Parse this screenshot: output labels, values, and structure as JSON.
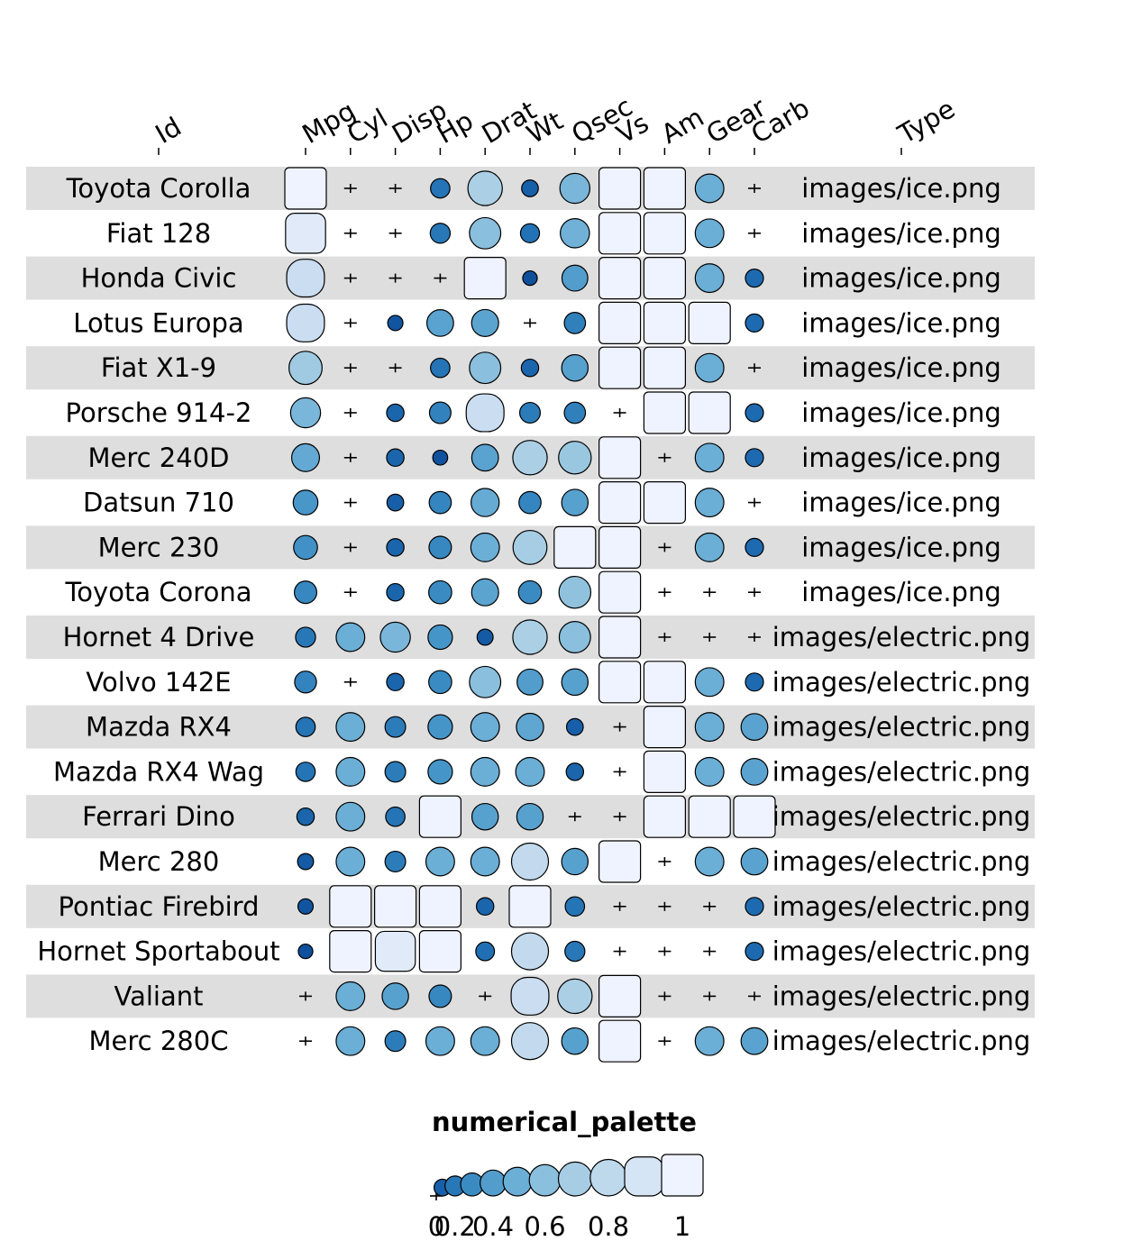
{
  "chart_data": {
    "type": "heatmap",
    "subtype": "funky heatmap (size + colour encoded glyphs)",
    "columns": [
      {
        "id": "id",
        "label": "Id",
        "kind": "text"
      },
      {
        "id": "mpg",
        "label": "Mpg",
        "kind": "funkyrect"
      },
      {
        "id": "cyl",
        "label": "Cyl",
        "kind": "funkyrect"
      },
      {
        "id": "disp",
        "label": "Disp",
        "kind": "funkyrect"
      },
      {
        "id": "hp",
        "label": "Hp",
        "kind": "funkyrect"
      },
      {
        "id": "drat",
        "label": "Drat",
        "kind": "funkyrect"
      },
      {
        "id": "wt",
        "label": "Wt",
        "kind": "funkyrect"
      },
      {
        "id": "qsec",
        "label": "Qsec",
        "kind": "funkyrect"
      },
      {
        "id": "vs",
        "label": "Vs",
        "kind": "funkyrect"
      },
      {
        "id": "am",
        "label": "Am",
        "kind": "funkyrect"
      },
      {
        "id": "gear",
        "label": "Gear",
        "kind": "funkyrect"
      },
      {
        "id": "carb",
        "label": "Carb",
        "kind": "funkyrect"
      },
      {
        "id": "type",
        "label": "Type",
        "kind": "text"
      }
    ],
    "numeric_columns": [
      "mpg",
      "cyl",
      "disp",
      "hp",
      "drat",
      "wt",
      "qsec",
      "vs",
      "am",
      "gear",
      "carb"
    ],
    "rows": [
      {
        "id": "Toyota Corolla",
        "type": "images/ice.png",
        "values": [
          1.0,
          0.0,
          0.02,
          0.18,
          0.72,
          0.1,
          0.55,
          1,
          1,
          0.5,
          0.0
        ]
      },
      {
        "id": "Fiat 128",
        "type": "images/ice.png",
        "values": [
          0.94,
          0.0,
          0.02,
          0.2,
          0.6,
          0.17,
          0.52,
          1,
          1,
          0.5,
          0.0
        ]
      },
      {
        "id": "Honda Civic",
        "type": "images/ice.png",
        "values": [
          0.85,
          0.0,
          0.01,
          0.0,
          1.0,
          0.04,
          0.4,
          1,
          1,
          0.5,
          0.14
        ]
      },
      {
        "id": "Lotus Europa",
        "type": "images/ice.png",
        "values": [
          0.85,
          0.0,
          0.06,
          0.43,
          0.44,
          0.0,
          0.24,
          1,
          1,
          1.0,
          0.14
        ]
      },
      {
        "id": "Fiat X1-9",
        "type": "images/ice.png",
        "values": [
          0.67,
          0.0,
          0.02,
          0.18,
          0.6,
          0.12,
          0.42,
          1,
          1,
          0.5,
          0.0
        ]
      },
      {
        "id": "Porsche 914-2",
        "type": "images/ice.png",
        "values": [
          0.55,
          0.0,
          0.12,
          0.25,
          0.85,
          0.22,
          0.24,
          0,
          1,
          1.0,
          0.14
        ]
      },
      {
        "id": "Merc 240D",
        "type": "images/ice.png",
        "values": [
          0.47,
          0.0,
          0.12,
          0.05,
          0.43,
          0.72,
          0.65,
          1,
          0,
          0.5,
          0.14
        ]
      },
      {
        "id": "Datsun 710",
        "type": "images/ice.png",
        "values": [
          0.36,
          0.0,
          0.1,
          0.27,
          0.48,
          0.27,
          0.42,
          1,
          1,
          0.5,
          0.0
        ]
      },
      {
        "id": "Merc 230",
        "type": "images/ice.png",
        "values": [
          0.33,
          0.0,
          0.12,
          0.28,
          0.5,
          0.7,
          1.0,
          1,
          0,
          0.5,
          0.14
        ]
      },
      {
        "id": "Toyota Corona",
        "type": "images/ice.png",
        "values": [
          0.28,
          0.0,
          0.12,
          0.3,
          0.44,
          0.3,
          0.62,
          1,
          0,
          0.0,
          0.0
        ]
      },
      {
        "id": "Hornet 4 Drive",
        "type": "images/electric.png",
        "values": [
          0.2,
          0.5,
          0.55,
          0.35,
          0.08,
          0.72,
          0.6,
          1,
          0,
          0.0,
          0.0
        ]
      },
      {
        "id": "Volvo 142E",
        "type": "images/electric.png",
        "values": [
          0.26,
          0.0,
          0.12,
          0.3,
          0.6,
          0.4,
          0.42,
          1,
          1,
          0.5,
          0.14
        ]
      },
      {
        "id": "Mazda RX4",
        "type": "images/electric.png",
        "values": [
          0.18,
          0.5,
          0.22,
          0.35,
          0.5,
          0.45,
          0.1,
          0,
          1,
          0.5,
          0.43
        ]
      },
      {
        "id": "Mazda RX4 Wag",
        "type": "images/electric.png",
        "values": [
          0.18,
          0.5,
          0.22,
          0.35,
          0.5,
          0.5,
          0.12,
          0,
          1,
          0.5,
          0.43
        ]
      },
      {
        "id": "Ferrari Dino",
        "type": "images/electric.png",
        "values": [
          0.12,
          0.5,
          0.18,
          1.0,
          0.42,
          0.42,
          0.02,
          0,
          1,
          1.0,
          1.0
        ]
      },
      {
        "id": "Merc 280",
        "type": "images/electric.png",
        "values": [
          0.08,
          0.5,
          0.22,
          0.5,
          0.5,
          0.82,
          0.42,
          1,
          0,
          0.5,
          0.43
        ]
      },
      {
        "id": "Pontiac Firebird",
        "type": "images/electric.png",
        "values": [
          0.06,
          1.0,
          1.0,
          1.0,
          0.12,
          1.0,
          0.18,
          0,
          0,
          0.0,
          0.14
        ]
      },
      {
        "id": "Hornet Sportabout",
        "type": "images/electric.png",
        "values": [
          0.04,
          1.0,
          0.94,
          1.0,
          0.16,
          0.82,
          0.2,
          0,
          0,
          0.0,
          0.14
        ]
      },
      {
        "id": "Valiant",
        "type": "images/electric.png",
        "values": [
          0.02,
          0.5,
          0.42,
          0.28,
          0.0,
          0.85,
          0.72,
          1,
          0,
          0.0,
          0.0
        ]
      },
      {
        "id": "Merc 280C",
        "type": "images/electric.png",
        "values": [
          0.0,
          0.5,
          0.22,
          0.5,
          0.5,
          0.82,
          0.42,
          1,
          0,
          0.5,
          0.43
        ]
      }
    ],
    "legend": {
      "title": "numerical_palette",
      "placement": "bottom",
      "glyph_values": [
        0.0,
        0.1,
        0.2,
        0.3,
        0.4,
        0.5,
        0.6,
        0.7,
        0.8,
        0.9,
        1.0
      ],
      "tick_labels": [
        "0",
        "0.2",
        "0.4",
        "0.6",
        "0.8",
        "1"
      ],
      "tick_values": [
        0.0,
        0.2,
        0.4,
        0.6,
        0.8,
        1.0
      ]
    },
    "row_stripes": true,
    "colors": {
      "palette_dark_to_light": [
        "#084594",
        "#2171b5",
        "#4292c6",
        "#6baed6",
        "#9ecae1",
        "#c6dbef",
        "#eff3ff"
      ],
      "stripe": "#dedede",
      "outline": "#000000"
    }
  }
}
